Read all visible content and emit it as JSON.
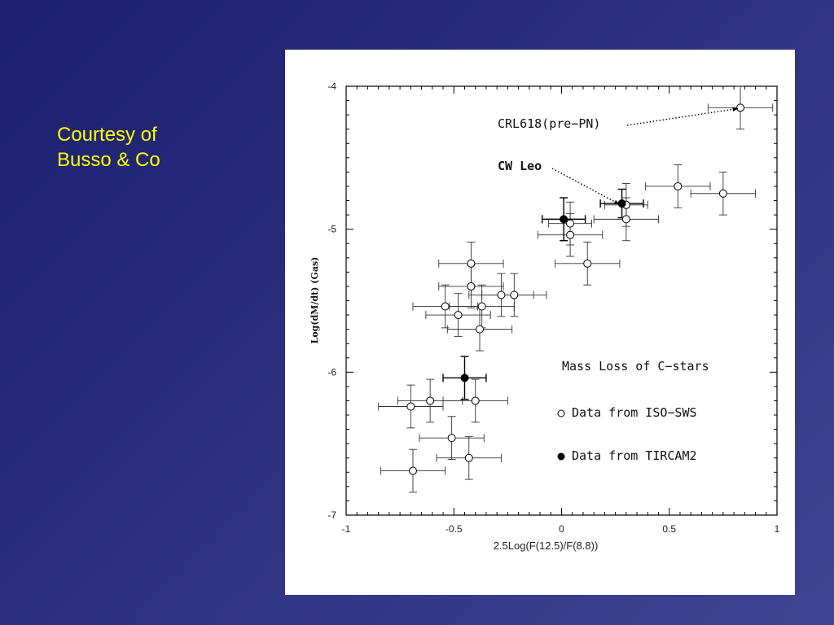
{
  "slide": {
    "caption_line1": "Courtesy of",
    "caption_line2": "Busso & Co"
  },
  "chart_data": {
    "type": "scatter",
    "title": "",
    "xlabel": "2.5Log(F(12.5)/F(8.8))",
    "ylabel": "Log(dM/dt) (Gas)",
    "xlim": [
      -1,
      1
    ],
    "ylim": [
      -7,
      -4
    ],
    "xticks": [
      "-1",
      "-0.5",
      "0",
      "0.5",
      "1"
    ],
    "yticks": [
      "-7",
      "-6",
      "-5",
      "-4"
    ],
    "grid": false,
    "legend": {
      "position": "right-center",
      "title": "Mass Loss of C−stars",
      "entries": [
        "Data from ISO−SWS",
        "Data from TIRCAM2"
      ]
    },
    "series": [
      {
        "name": "Data from ISO−SWS",
        "marker": "open-circle",
        "points": [
          {
            "x": 0.83,
            "y": -4.15,
            "xerr": 0.15,
            "yerr": 0.15
          },
          {
            "x": 0.54,
            "y": -4.7,
            "xerr": 0.15,
            "yerr": 0.15
          },
          {
            "x": 0.75,
            "y": -4.75,
            "xerr": 0.15,
            "yerr": 0.15
          },
          {
            "x": 0.3,
            "y": -4.83,
            "xerr": 0.1,
            "yerr": 0.15
          },
          {
            "x": 0.3,
            "y": -4.93,
            "xerr": 0.15,
            "yerr": 0.15
          },
          {
            "x": 0.04,
            "y": -4.96,
            "xerr": 0.1,
            "yerr": 0.15
          },
          {
            "x": 0.04,
            "y": -5.04,
            "xerr": 0.15,
            "yerr": 0.15
          },
          {
            "x": 0.12,
            "y": -5.24,
            "xerr": 0.15,
            "yerr": 0.15
          },
          {
            "x": -0.42,
            "y": -5.24,
            "xerr": 0.15,
            "yerr": 0.15
          },
          {
            "x": -0.42,
            "y": -5.4,
            "xerr": 0.15,
            "yerr": 0.15
          },
          {
            "x": -0.28,
            "y": -5.46,
            "xerr": 0.15,
            "yerr": 0.15
          },
          {
            "x": -0.22,
            "y": -5.46,
            "xerr": 0.15,
            "yerr": 0.15
          },
          {
            "x": -0.54,
            "y": -5.54,
            "xerr": 0.15,
            "yerr": 0.15
          },
          {
            "x": -0.37,
            "y": -5.54,
            "xerr": 0.15,
            "yerr": 0.15
          },
          {
            "x": -0.48,
            "y": -5.6,
            "xerr": 0.15,
            "yerr": 0.15
          },
          {
            "x": -0.38,
            "y": -5.7,
            "xerr": 0.15,
            "yerr": 0.15
          },
          {
            "x": -0.61,
            "y": -6.2,
            "xerr": 0.15,
            "yerr": 0.15
          },
          {
            "x": -0.4,
            "y": -6.2,
            "xerr": 0.15,
            "yerr": 0.15
          },
          {
            "x": -0.7,
            "y": -6.24,
            "xerr": 0.15,
            "yerr": 0.15
          },
          {
            "x": -0.51,
            "y": -6.46,
            "xerr": 0.15,
            "yerr": 0.15
          },
          {
            "x": -0.43,
            "y": -6.6,
            "xerr": 0.15,
            "yerr": 0.15
          },
          {
            "x": -0.69,
            "y": -6.69,
            "xerr": 0.15,
            "yerr": 0.15
          }
        ]
      },
      {
        "name": "Data from TIRCAM2",
        "marker": "filled-circle",
        "points": [
          {
            "x": 0.01,
            "y": -4.93,
            "xerr": 0.1,
            "yerr": 0.15
          },
          {
            "x": 0.28,
            "y": -4.82,
            "xerr": 0.1,
            "yerr": 0.1
          },
          {
            "x": -0.45,
            "y": -6.04,
            "xerr": 0.1,
            "yerr": 0.15
          }
        ]
      }
    ],
    "annotations": [
      {
        "text": "CRL618(pre−PN)",
        "bold": false,
        "target": {
          "x": 0.83,
          "y": -4.15
        }
      },
      {
        "text": "CW Leo",
        "bold": true,
        "target": {
          "x": 0.28,
          "y": -4.82
        }
      }
    ]
  }
}
